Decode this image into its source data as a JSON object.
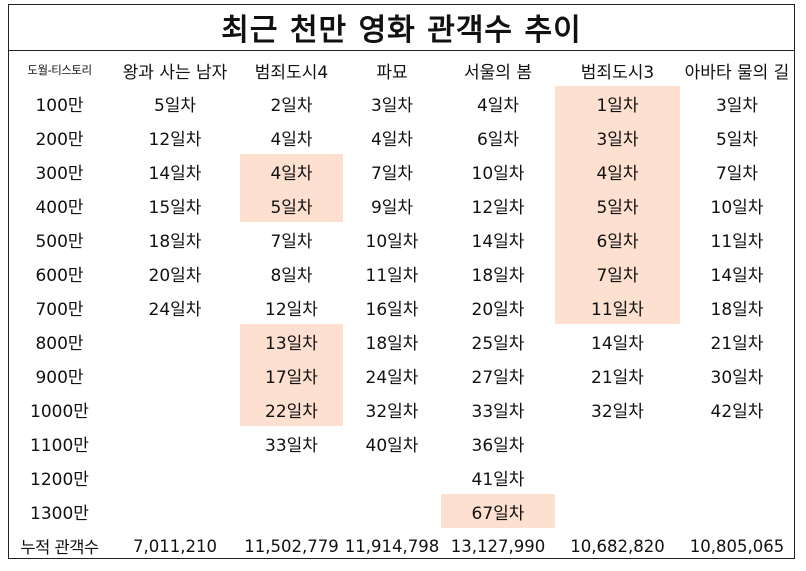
{
  "title": "최근 천만 영화 관객수 추이",
  "highlight_color": "#fde0cf",
  "headers": [
    "도월-티스토리",
    "왕과 사는 남자",
    "범죄도시4",
    "파묘",
    "서울의 봄",
    "범죄도시3",
    "아바타 물의 길"
  ],
  "rows": [
    {
      "label": "100만",
      "cells": [
        "5일차",
        "2일차",
        "3일차",
        "4일차",
        "1일차",
        "3일차"
      ]
    },
    {
      "label": "200만",
      "cells": [
        "12일차",
        "4일차",
        "4일차",
        "6일차",
        "3일차",
        "5일차"
      ]
    },
    {
      "label": "300만",
      "cells": [
        "14일차",
        "4일차",
        "7일차",
        "10일차",
        "4일차",
        "7일차"
      ]
    },
    {
      "label": "400만",
      "cells": [
        "15일차",
        "5일차",
        "9일차",
        "12일차",
        "5일차",
        "10일차"
      ]
    },
    {
      "label": "500만",
      "cells": [
        "18일차",
        "7일차",
        "10일차",
        "14일차",
        "6일차",
        "11일차"
      ]
    },
    {
      "label": "600만",
      "cells": [
        "20일차",
        "8일차",
        "11일차",
        "18일차",
        "7일차",
        "14일차"
      ]
    },
    {
      "label": "700만",
      "cells": [
        "24일차",
        "12일차",
        "16일차",
        "20일차",
        "11일차",
        "18일차"
      ]
    },
    {
      "label": "800만",
      "cells": [
        "",
        "13일차",
        "18일차",
        "25일차",
        "14일차",
        "21일차"
      ]
    },
    {
      "label": "900만",
      "cells": [
        "",
        "17일차",
        "24일차",
        "27일차",
        "21일차",
        "30일차"
      ]
    },
    {
      "label": "1000만",
      "cells": [
        "",
        "22일차",
        "32일차",
        "33일차",
        "32일차",
        "42일차"
      ]
    },
    {
      "label": "1100만",
      "cells": [
        "",
        "33일차",
        "40일차",
        "36일차",
        "",
        ""
      ]
    },
    {
      "label": "1200만",
      "cells": [
        "",
        "",
        "",
        "41일차",
        "",
        ""
      ]
    },
    {
      "label": "1300만",
      "cells": [
        "",
        "",
        "",
        "67일차",
        "",
        ""
      ]
    }
  ],
  "total": {
    "label": "누적 관객수",
    "values": [
      "7,011,210",
      "11,502,779",
      "11,914,798",
      "13,127,990",
      "10,682,820",
      "10,805,065"
    ]
  }
}
